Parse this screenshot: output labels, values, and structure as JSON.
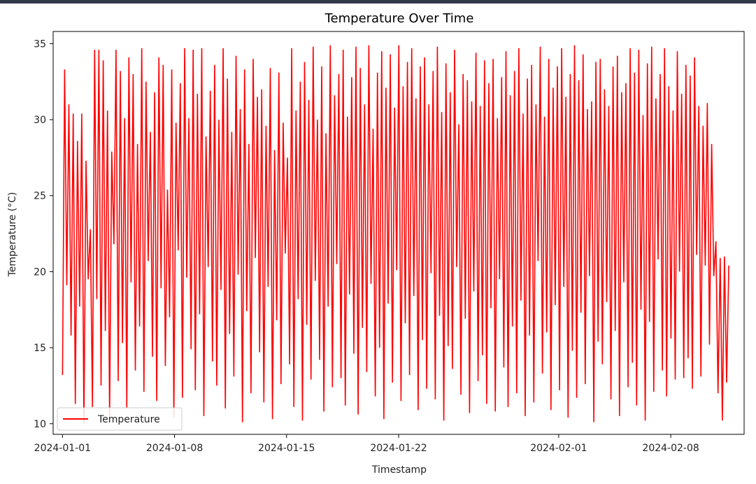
{
  "colors": {
    "line": "#ff0000",
    "axes": "#000000",
    "background": "#ffffff",
    "legend_border": "#cccccc",
    "window_bar": "#333a47"
  },
  "chart_data": {
    "type": "line",
    "title": "Temperature Over Time",
    "xlabel": "Timestamp",
    "ylabel": "Temperature (°C)",
    "xlim": [
      "2023-12-31T10:00",
      "2024-02-12T14:00"
    ],
    "ylim": [
      9.3,
      35.8
    ],
    "x_ticks": [
      "2024-01-01",
      "2024-01-08",
      "2024-01-15",
      "2024-01-22",
      "2024-02-01",
      "2024-02-08"
    ],
    "y_ticks": [
      10,
      15,
      20,
      25,
      30,
      35
    ],
    "grid": false,
    "legend": {
      "entries": [
        "Temperature"
      ],
      "placement": "lower-left"
    },
    "series": [
      {
        "name": "Temperature",
        "x_start": "2024-01-01T00:00",
        "x_end": "2024-02-11T15:00",
        "interval": "hourly",
        "values_sampled": [
          13.2,
          33.3,
          19.1,
          31.0,
          15.8,
          30.4,
          11.3,
          28.6,
          17.7,
          30.4,
          10.0,
          27.3,
          19.5,
          22.8,
          11.1,
          34.6,
          18.2,
          34.6,
          12.5,
          33.9,
          16.1,
          30.6,
          10.4,
          27.9,
          21.8,
          34.6,
          12.8,
          33.2,
          15.3,
          30.1,
          11.0,
          34.1,
          19.3,
          33.0,
          13.5,
          28.4,
          16.4,
          34.7,
          12.1,
          32.5,
          20.7,
          29.2,
          14.4,
          31.8,
          11.5,
          34.1,
          18.9,
          33.6,
          13.8,
          25.4,
          17.0,
          33.3,
          10.4,
          29.8,
          21.4,
          32.4,
          11.7,
          34.7,
          19.6,
          30.1,
          14.9,
          34.6,
          12.2,
          31.7,
          17.2,
          34.7,
          10.5,
          28.9,
          20.3,
          31.9,
          14.1,
          33.6,
          12.5,
          30.0,
          18.8,
          34.7,
          11.0,
          32.7,
          15.9,
          29.2,
          13.1,
          34.2,
          19.8,
          30.7,
          10.1,
          33.3,
          17.4,
          28.4,
          12.0,
          34.0,
          20.9,
          31.5,
          14.7,
          32.0,
          11.4,
          29.6,
          19.0,
          33.4,
          10.3,
          28.0,
          16.8,
          33.1,
          12.6,
          29.8,
          21.2,
          27.5,
          13.9,
          34.7,
          11.1,
          30.6,
          18.2,
          32.5,
          10.2,
          33.8,
          16.5,
          31.3,
          12.9,
          34.8,
          19.4,
          30.0,
          14.2,
          33.5,
          10.8,
          29.1,
          17.7,
          34.9,
          12.4,
          31.6,
          20.5,
          33.0,
          13.0,
          34.6,
          11.2,
          30.2,
          18.5,
          32.8,
          14.6,
          34.8,
          10.6,
          33.4,
          16.3,
          31.0,
          13.4,
          34.9,
          19.2,
          29.4,
          11.8,
          33.1,
          15.0,
          34.5,
          10.3,
          32.1,
          17.9,
          34.3,
          12.7,
          30.8,
          20.1,
          34.9,
          11.5,
          32.2,
          16.6,
          33.8,
          13.2,
          34.7,
          18.4,
          31.4,
          10.9,
          33.5,
          15.5,
          34.1,
          12.3,
          31.0,
          19.9,
          33.2,
          11.6,
          34.8,
          17.1,
          30.5,
          10.2,
          33.7,
          15.1,
          31.8,
          13.6,
          34.6,
          20.3,
          29.7,
          11.9,
          33.0,
          16.9,
          32.6,
          10.7,
          31.2,
          18.7,
          34.4,
          12.8,
          30.9,
          14.5,
          33.9,
          11.3,
          32.4,
          17.6,
          34.0,
          10.8,
          30.1,
          19.5,
          32.8,
          13.7,
          34.5,
          11.1,
          31.6,
          16.4,
          33.2,
          12.0,
          34.7,
          18.1,
          30.4,
          10.5,
          32.7,
          15.8,
          33.6,
          11.4,
          31.0,
          20.7,
          34.8,
          13.3,
          30.2,
          16.0,
          34.0,
          10.9,
          32.1,
          17.8,
          33.5,
          12.2,
          34.7,
          19.0,
          31.5,
          10.4,
          33.0,
          14.8,
          34.9,
          11.7,
          32.6,
          17.3,
          34.3,
          12.6,
          30.7,
          19.7,
          31.2,
          10.1,
          33.8,
          15.4,
          34.0,
          13.9,
          32.0,
          18.0,
          30.9,
          11.6,
          33.5,
          16.1,
          34.2,
          10.5,
          31.8,
          19.3,
          32.4,
          12.4,
          34.7,
          14.0,
          33.1,
          11.2,
          34.6,
          17.5,
          30.3,
          10.2,
          33.7,
          16.7,
          34.8,
          12.1,
          31.4,
          20.8,
          33.0,
          13.5,
          34.7,
          11.8,
          32.2,
          15.6,
          30.6,
          12.9,
          34.5,
          20.0,
          31.7,
          13.0,
          33.6,
          14.3,
          32.9,
          12.3,
          34.1,
          21.1,
          30.9,
          13.1,
          29.6,
          20.4,
          31.1,
          15.2,
          28.4,
          19.7,
          22.0,
          12.0,
          20.9,
          10.2,
          21.0,
          12.7,
          20.4
        ]
      }
    ]
  }
}
